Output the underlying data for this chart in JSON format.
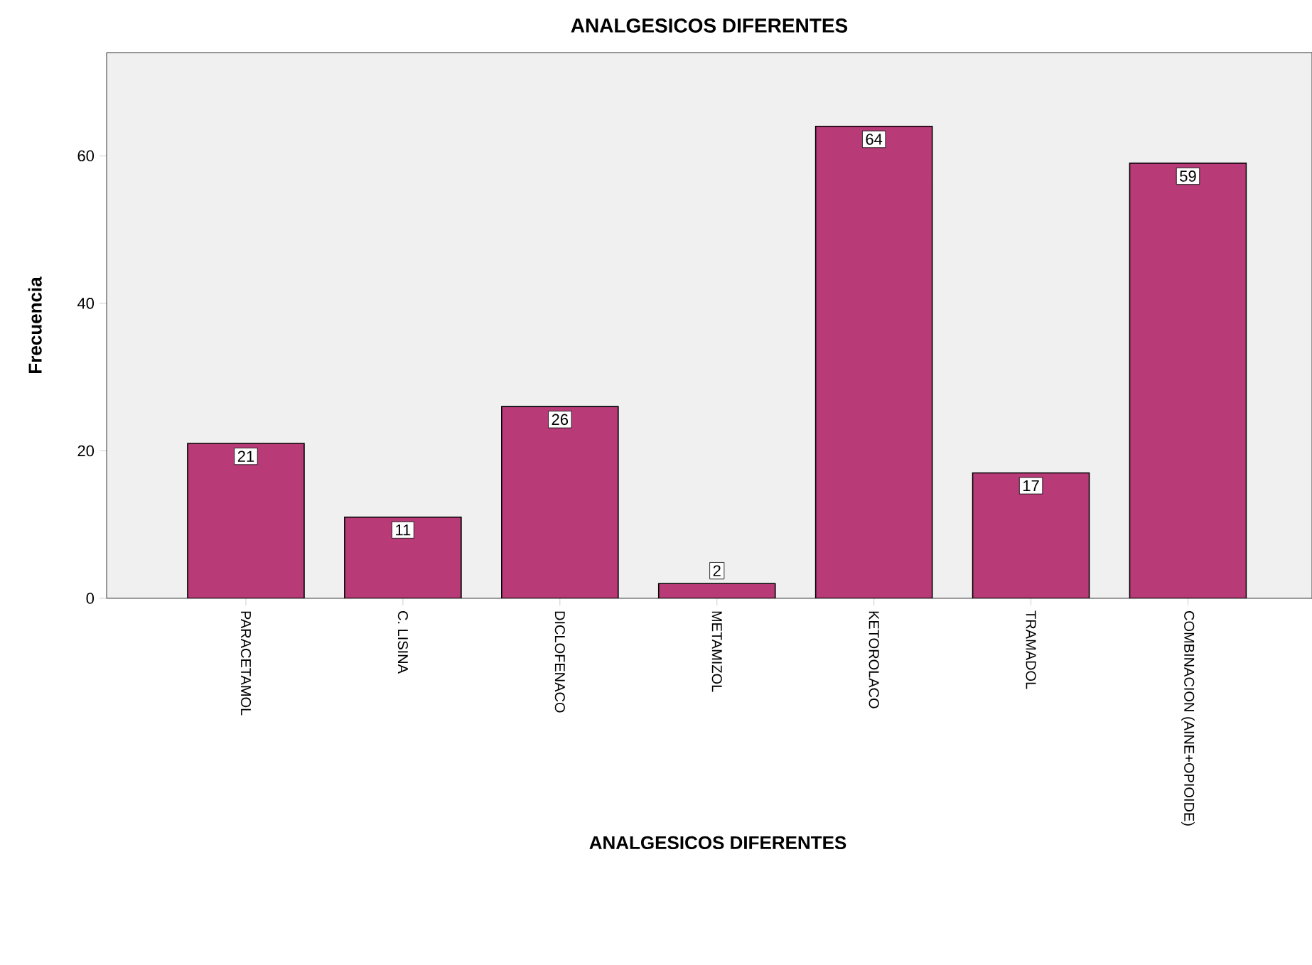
{
  "chart_data": {
    "type": "bar",
    "title": "ANALGESICOS DIFERENTES",
    "xlabel": "ANALGESICOS DIFERENTES",
    "ylabel": "Frecuencia",
    "categories": [
      "PARACETAMOL",
      "C. LISINA",
      "DICLOFENACO",
      "METAMIZOL",
      "KETOROLACO",
      "TRAMADOL",
      "COMBINACION (AINE+OPIOIDE)"
    ],
    "values": [
      21,
      11,
      26,
      2,
      64,
      17,
      59
    ],
    "color": "#b83b78",
    "ylim": [
      0,
      74
    ],
    "yticks": [
      0,
      20,
      40,
      60
    ],
    "data_labels": true,
    "grid": false
  }
}
